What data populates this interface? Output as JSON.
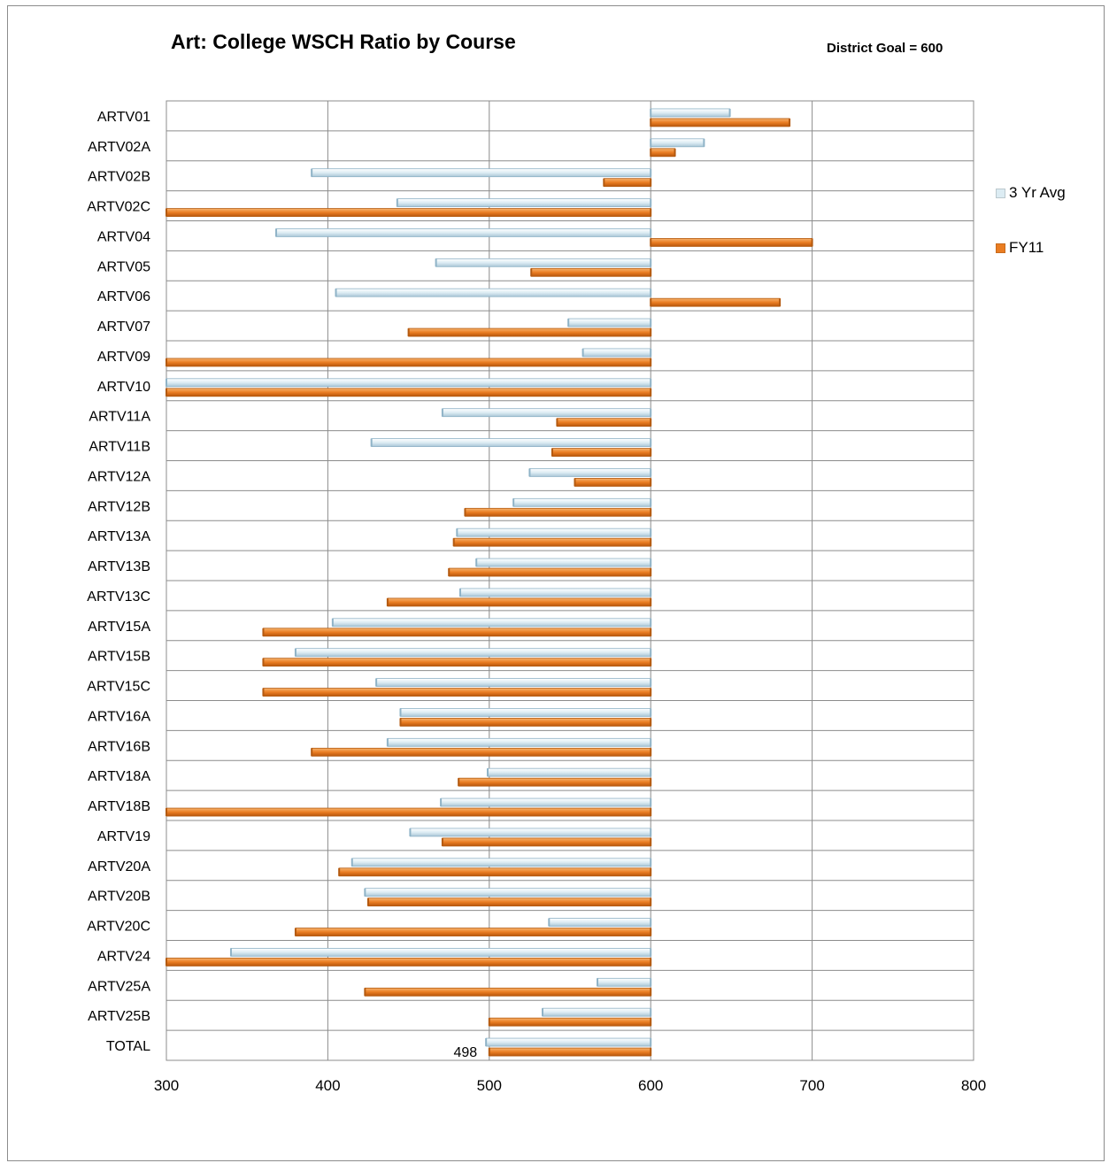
{
  "title": "Art: College WSCH Ratio by Course",
  "subtitle": "District Goal = 600",
  "colors": {
    "avg3yr": "#dcecf3",
    "avg3yr_edge": "#8fb3c7",
    "fy11": "#ea7d22",
    "fy11_edge": "#b45a10",
    "grid": "#8c8c8c"
  },
  "chart_data": {
    "type": "bar",
    "orientation": "horizontal",
    "baseline": 600,
    "xlim": [
      300,
      800
    ],
    "xticks": [
      300,
      400,
      500,
      600,
      700,
      800
    ],
    "grid": true,
    "legend_position": "right",
    "categories": [
      "ARTV01",
      "ARTV02A",
      "ARTV02B",
      "ARTV02C",
      "ARTV04",
      "ARTV05",
      "ARTV06",
      "ARTV07",
      "ARTV09",
      "ARTV10",
      "ARTV11A",
      "ARTV11B",
      "ARTV12A",
      "ARTV12B",
      "ARTV13A",
      "ARTV13B",
      "ARTV13C",
      "ARTV15A",
      "ARTV15B",
      "ARTV15C",
      "ARTV16A",
      "ARTV16B",
      "ARTV18A",
      "ARTV18B",
      "ARTV19",
      "ARTV20A",
      "ARTV20B",
      "ARTV20C",
      "ARTV24",
      "ARTV25A",
      "ARTV25B",
      "TOTAL"
    ],
    "series": [
      {
        "name": "3 Yr Avg",
        "values": [
          649,
          633,
          390,
          443,
          368,
          467,
          405,
          549,
          558,
          300,
          471,
          427,
          525,
          515,
          480,
          492,
          482,
          403,
          380,
          430,
          445,
          437,
          499,
          470,
          451,
          415,
          423,
          537,
          340,
          567,
          533,
          498
        ]
      },
      {
        "name": "FY11",
        "values": [
          686,
          615,
          571,
          300,
          700,
          526,
          680,
          450,
          300,
          300,
          542,
          539,
          553,
          485,
          478,
          475,
          437,
          360,
          360,
          360,
          445,
          390,
          481,
          300,
          471,
          407,
          425,
          380,
          300,
          423,
          500,
          500
        ]
      }
    ],
    "data_labels": [
      {
        "category": "TOTAL",
        "series": "3 Yr Avg",
        "text": "498"
      }
    ]
  }
}
